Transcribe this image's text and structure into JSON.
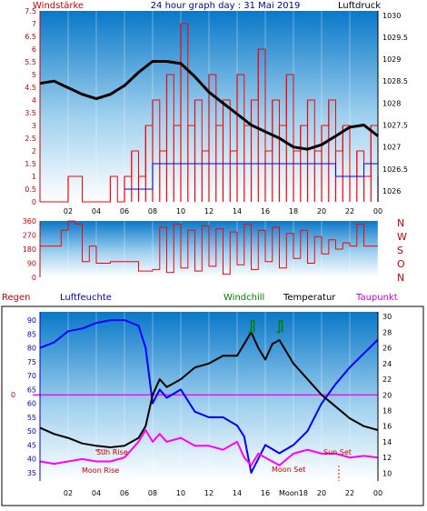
{
  "header": {
    "left_label": "Windstärke",
    "title": "24 hour graph day : 31 Mai 2019",
    "right_label": "Luftdruck"
  },
  "legend": {
    "regen": "Regen",
    "luftfeuchte": "Luftfeuchte",
    "windchill": "Windchill",
    "temperatur": "Temperatur",
    "taupunkt": "Taupunkt"
  },
  "compass": [
    "N",
    "W",
    "S",
    "O",
    "N"
  ],
  "annotations": {
    "sun_rise": "Sun Rise",
    "moon_rise": "Moon Rise",
    "moon_set": "Moon Set",
    "sun_set": "Sun Set",
    "moon_marker": "Moon"
  },
  "colors": {
    "wind": "#ff0000",
    "pressure": "#000000",
    "humidity": "#0000ff",
    "temperature": "#000000",
    "dewpoint": "#ff00ff",
    "windchill": "#008000",
    "gradient_top": "#0a78c8",
    "gradient_bottom": "#ffffff"
  },
  "chart_data": [
    {
      "type": "line",
      "name": "wind_and_pressure",
      "x_ticks": [
        "02",
        "04",
        "06",
        "08",
        "10",
        "12",
        "14",
        "16",
        "18",
        "20",
        "22",
        "00"
      ],
      "y_left_ticks": [
        "0",
        "0.5",
        "1",
        "1.5",
        "2",
        "2.5",
        "3",
        "3.5",
        "4",
        "4.5",
        "5",
        "5.5",
        "6",
        "6.5",
        "7",
        "7.5"
      ],
      "y_right_ticks": [
        "1026",
        "1026.5",
        "1027",
        "1027.5",
        "1028",
        "1028.5",
        "1029",
        "1029.5",
        "1030"
      ],
      "ylim_left": [
        0,
        7.5
      ],
      "ylim_right": [
        1025.75,
        1030.1
      ],
      "pressure": {
        "x": [
          0,
          1,
          2,
          3,
          4,
          5,
          6,
          7,
          8,
          9,
          10,
          11,
          12,
          13,
          14,
          15,
          16,
          17,
          18,
          19,
          20,
          21,
          22,
          23,
          24
        ],
        "y": [
          1028.45,
          1028.5,
          1028.35,
          1028.2,
          1028.1,
          1028.2,
          1028.4,
          1028.7,
          1028.95,
          1028.95,
          1028.9,
          1028.6,
          1028.25,
          1028.0,
          1027.75,
          1027.5,
          1027.35,
          1027.2,
          1027.0,
          1026.95,
          1027.05,
          1027.25,
          1027.45,
          1027.5,
          1027.25
        ]
      },
      "wind_speed": {
        "x": [
          0,
          1,
          2,
          3,
          4,
          5,
          5.5,
          6,
          6.5,
          7,
          7.5,
          8,
          8.5,
          9,
          9.5,
          10,
          10.5,
          11,
          11.5,
          12,
          12.5,
          13,
          13.5,
          14,
          14.5,
          15,
          15.5,
          16,
          16.5,
          17,
          17.5,
          18,
          18.5,
          19,
          19.5,
          20,
          20.5,
          21,
          21.5,
          22,
          22.5,
          23,
          23.5,
          24
        ],
        "y": [
          0,
          0,
          1,
          0,
          0,
          1,
          0,
          1,
          2,
          1,
          3,
          4,
          2,
          5,
          3,
          7,
          3,
          4,
          2,
          5,
          3,
          4,
          2,
          5,
          3,
          4,
          6,
          2,
          4,
          3,
          5,
          2,
          3,
          4,
          2,
          3,
          4,
          2,
          3,
          1,
          2,
          1,
          3,
          1
        ]
      },
      "wind_gust": {
        "x": [
          6,
          8,
          9,
          10,
          11,
          12,
          13,
          14,
          15,
          16,
          17,
          18,
          19,
          20,
          21,
          22,
          23,
          24
        ],
        "y": [
          0.5,
          1.5,
          1.5,
          1.5,
          1.5,
          1.5,
          1.5,
          1.5,
          1.5,
          1.5,
          1.5,
          1.5,
          1.5,
          1.5,
          1,
          1,
          1.5,
          1
        ]
      }
    },
    {
      "type": "line",
      "name": "wind_direction",
      "y_ticks": [
        "0",
        "90",
        "180",
        "270",
        "360"
      ],
      "ylim": [
        0,
        360
      ],
      "x": [
        0,
        1,
        1.5,
        2,
        2.5,
        3,
        3.5,
        4,
        5,
        6,
        7,
        8,
        8.5,
        9,
        9.5,
        10,
        10.5,
        11,
        11.5,
        12,
        12.5,
        13,
        13.5,
        14,
        14.5,
        15,
        15.5,
        16,
        16.5,
        17,
        17.5,
        18,
        18.5,
        19,
        19.5,
        20,
        20.5,
        21,
        21.5,
        22,
        22.5,
        23,
        24
      ],
      "y": [
        200,
        200,
        300,
        360,
        340,
        100,
        200,
        90,
        100,
        100,
        40,
        50,
        320,
        30,
        340,
        60,
        300,
        40,
        330,
        70,
        310,
        20,
        290,
        80,
        340,
        50,
        300,
        100,
        320,
        60,
        280,
        120,
        300,
        90,
        260,
        150,
        240,
        180,
        220,
        200,
        340,
        200,
        200
      ]
    },
    {
      "type": "line",
      "name": "humidity_temperature",
      "x_ticks": [
        "02",
        "04",
        "06",
        "08",
        "10",
        "12",
        "14",
        "16",
        "Moon18",
        "20",
        "22",
        "00"
      ],
      "y_left_ticks": [
        "35",
        "40",
        "45",
        "50",
        "55",
        "60",
        "65",
        "70",
        "75",
        "80",
        "85",
        "90"
      ],
      "y_right_ticks": [
        "10",
        "12",
        "14",
        "16",
        "18",
        "20",
        "22",
        "24",
        "26",
        "28",
        "30"
      ],
      "y_left_axis_label": "0",
      "ylim_left": [
        32,
        93
      ],
      "ylim_right": [
        9,
        30.6
      ],
      "humidity": {
        "x": [
          0,
          1,
          2,
          3,
          4,
          5,
          6,
          7,
          7.5,
          8,
          8.5,
          9,
          10,
          11,
          12,
          13,
          14,
          14.5,
          15,
          15.5,
          16,
          17,
          18,
          19,
          20,
          21,
          22,
          23,
          24
        ],
        "y": [
          80,
          82,
          86,
          87,
          89,
          90,
          90,
          88,
          80,
          60,
          65,
          62,
          65,
          57,
          55,
          55,
          52,
          48,
          35,
          40,
          45,
          42,
          45,
          50,
          60,
          67,
          73,
          78,
          83
        ]
      },
      "temperature": {
        "x": [
          0,
          1,
          2,
          3,
          4,
          5,
          6,
          7,
          7.5,
          8,
          8.5,
          9,
          10,
          11,
          12,
          13,
          14,
          14.5,
          15,
          15.5,
          16,
          16.5,
          17,
          18,
          19,
          20,
          21,
          22,
          23,
          24
        ],
        "y": [
          15.8,
          15,
          14.5,
          13.8,
          13.5,
          13.3,
          13.5,
          14.5,
          16,
          20,
          22,
          21,
          22,
          23.5,
          24,
          25,
          25,
          26.5,
          28,
          26,
          24.5,
          26.5,
          27,
          24,
          22,
          20,
          18.5,
          17,
          16,
          15.5
        ]
      },
      "dewpoint": {
        "x": [
          0,
          1,
          2,
          3,
          4,
          5,
          6,
          7,
          7.5,
          8,
          8.5,
          9,
          10,
          11,
          12,
          13,
          14,
          14.5,
          15,
          15.5,
          16,
          17,
          18,
          19,
          20,
          21,
          22,
          23,
          24
        ],
        "y": [
          11.5,
          11.2,
          11.5,
          11.8,
          11.5,
          11.5,
          12,
          14,
          15.5,
          14,
          15,
          14,
          14.5,
          13.5,
          13.5,
          13,
          14,
          12,
          11,
          12.5,
          12,
          11,
          12.5,
          13,
          12.5,
          12.5,
          12,
          12.2,
          12
        ]
      },
      "windchill": {
        "x": [
          14.8,
          15,
          15.2,
          16.8,
          17,
          17.2
        ],
        "y": [
          28,
          29.5,
          28,
          28,
          29.5,
          28
        ]
      },
      "rain_line_value": 20
    }
  ]
}
